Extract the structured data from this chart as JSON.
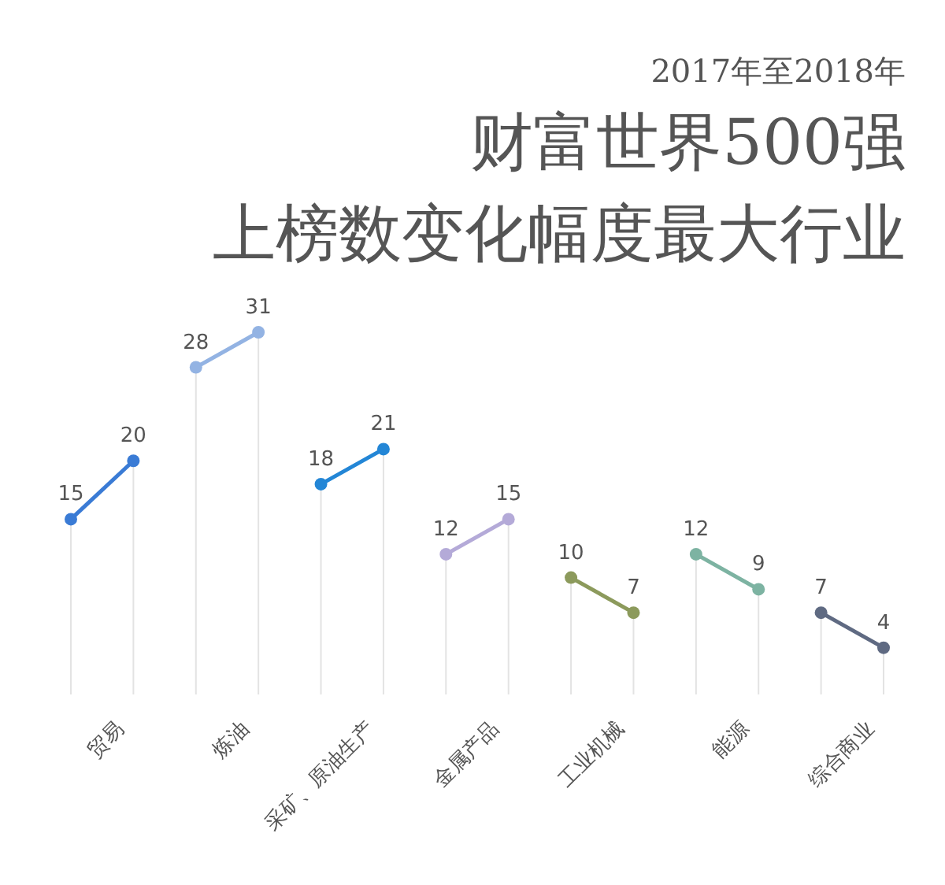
{
  "chart_data": {
    "type": "line",
    "annotations": [
      "2017年至2018年"
    ],
    "title": "财富世界500强",
    "subtitle": "上榜数变化幅度最大行业",
    "categories": [
      null,
      "贸易",
      null,
      "炼油",
      null,
      "采矿、原油生产",
      null,
      "金属产品",
      null,
      "工业机械",
      null,
      "能源",
      null,
      "综合商业"
    ],
    "series": [
      {
        "color": "#3a7bd5",
        "values": [
          15,
          20,
          null,
          null,
          null,
          null,
          null,
          null,
          null,
          null,
          null,
          null,
          null,
          null
        ]
      },
      {
        "color": "#93b3e3",
        "values": [
          null,
          null,
          28,
          31,
          null,
          null,
          null,
          null,
          null,
          null,
          null,
          null,
          null,
          null
        ]
      },
      {
        "color": "#2386d6",
        "values": [
          null,
          null,
          null,
          null,
          18,
          21,
          null,
          null,
          null,
          null,
          null,
          null,
          null,
          null
        ]
      },
      {
        "color": "#b4aad8",
        "values": [
          null,
          null,
          null,
          null,
          null,
          null,
          12,
          15,
          null,
          null,
          null,
          null,
          null,
          null
        ]
      },
      {
        "color": "#8c9a5c",
        "values": [
          null,
          null,
          null,
          null,
          null,
          null,
          null,
          null,
          10,
          7,
          null,
          null,
          null,
          null
        ]
      },
      {
        "color": "#7db3a2",
        "values": [
          null,
          null,
          null,
          null,
          null,
          null,
          null,
          null,
          null,
          null,
          12,
          9,
          null,
          null
        ]
      },
      {
        "color": "#5f6a82",
        "values": [
          null,
          null,
          null,
          null,
          null,
          null,
          null,
          null,
          null,
          null,
          null,
          null,
          7,
          4
        ]
      }
    ],
    "tick_labels": "x",
    "marker": "circle",
    "data_labels": true,
    "grid": "x"
  }
}
